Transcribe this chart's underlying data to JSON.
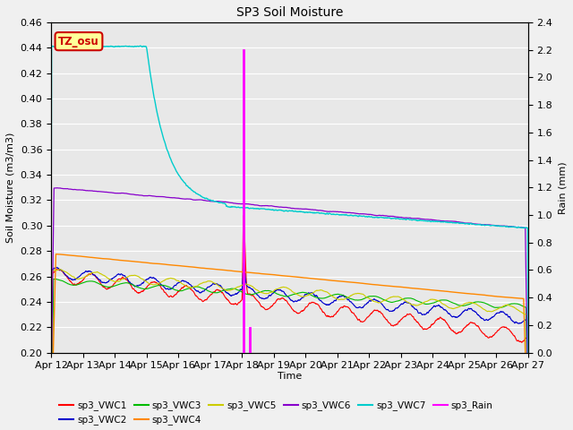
{
  "title": "SP3 Soil Moisture",
  "xlabel": "Time",
  "ylabel_left": "Soil Moisture (m3/m3)",
  "ylabel_right": "Rain (mm)",
  "ylim_left": [
    0.2,
    0.46
  ],
  "ylim_right": [
    0.0,
    2.4
  ],
  "x_tick_labels": [
    "Apr 12",
    "Apr 13",
    "Apr 14",
    "Apr 15",
    "Apr 16",
    "Apr 17",
    "Apr 18",
    "Apr 19",
    "Apr 20",
    "Apr 21",
    "Apr 22",
    "Apr 23",
    "Apr 24",
    "Apr 25",
    "Apr 26",
    "Apr 27"
  ],
  "bg_color": "#e8e8e8",
  "fig_facecolor": "#f0f0f0",
  "annotation_box": {
    "text": "TZ_osu",
    "facecolor": "#ffff99",
    "edgecolor": "#cc0000",
    "textcolor": "#cc0000"
  },
  "rain_event_day": 6.05,
  "rain_spike_value": 2.2,
  "rain_small_bar_value": 0.18,
  "rain_small_bar_day": 6.25,
  "rain_line_color": "#ff00ff",
  "series_colors": {
    "VWC1": "#ff0000",
    "VWC2": "#0000cc",
    "VWC3": "#00bb00",
    "VWC4": "#ff8800",
    "VWC5": "#cccc00",
    "VWC6": "#8800cc",
    "VWC7": "#00cccc"
  },
  "legend_entries": [
    {
      "label": "sp3_VWC1",
      "color": "#ff0000"
    },
    {
      "label": "sp3_VWC2",
      "color": "#0000cc"
    },
    {
      "label": "sp3_VWC3",
      "color": "#00bb00"
    },
    {
      "label": "sp3_VWC4",
      "color": "#ff8800"
    },
    {
      "label": "sp3_VWC5",
      "color": "#cccc00"
    },
    {
      "label": "sp3_VWC6",
      "color": "#8800cc"
    },
    {
      "label": "sp3_VWC7",
      "color": "#00cccc"
    },
    {
      "label": "sp3_Rain",
      "color": "#ff00ff"
    }
  ]
}
